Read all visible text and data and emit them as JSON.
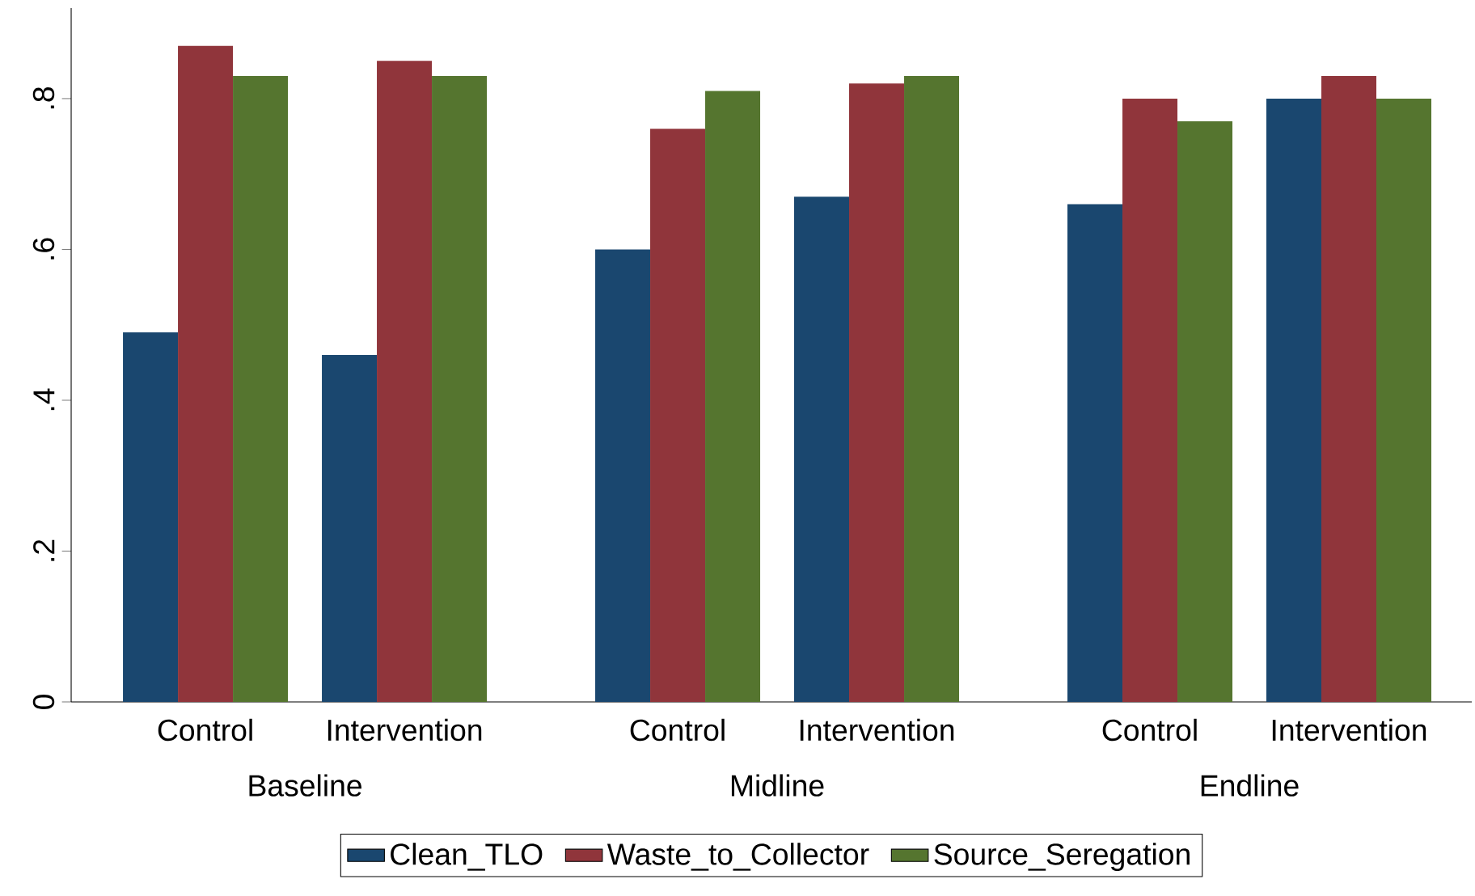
{
  "chart_data": {
    "type": "bar",
    "categories": [
      "Control",
      "Intervention",
      "Control",
      "Intervention",
      "Control",
      "Intervention"
    ],
    "series": [
      {
        "name": "Clean_TLO",
        "color": "#1a476f",
        "values": [
          0.49,
          0.46,
          0.6,
          0.67,
          0.66,
          0.8
        ]
      },
      {
        "name": "Waste_to_Collector",
        "color": "#90353b",
        "values": [
          0.87,
          0.85,
          0.76,
          0.82,
          0.8,
          0.83
        ]
      },
      {
        "name": "Source_Seregation",
        "color": "#55752f",
        "values": [
          0.83,
          0.83,
          0.81,
          0.83,
          0.77,
          0.8
        ]
      }
    ],
    "annotations": [
      "Baseline",
      "Midline",
      "Endline"
    ],
    "ylim": [
      0,
      0.92
    ],
    "yticks": [
      0,
      {
        "value": 0.2,
        "label": ".2"
      },
      {
        "value": 0.4,
        "label": ".4"
      },
      {
        "value": 0.6,
        "label": ".6"
      },
      {
        "value": 0.8,
        "label": ".8"
      }
    ],
    "legend": "bottom",
    "grid": false
  }
}
